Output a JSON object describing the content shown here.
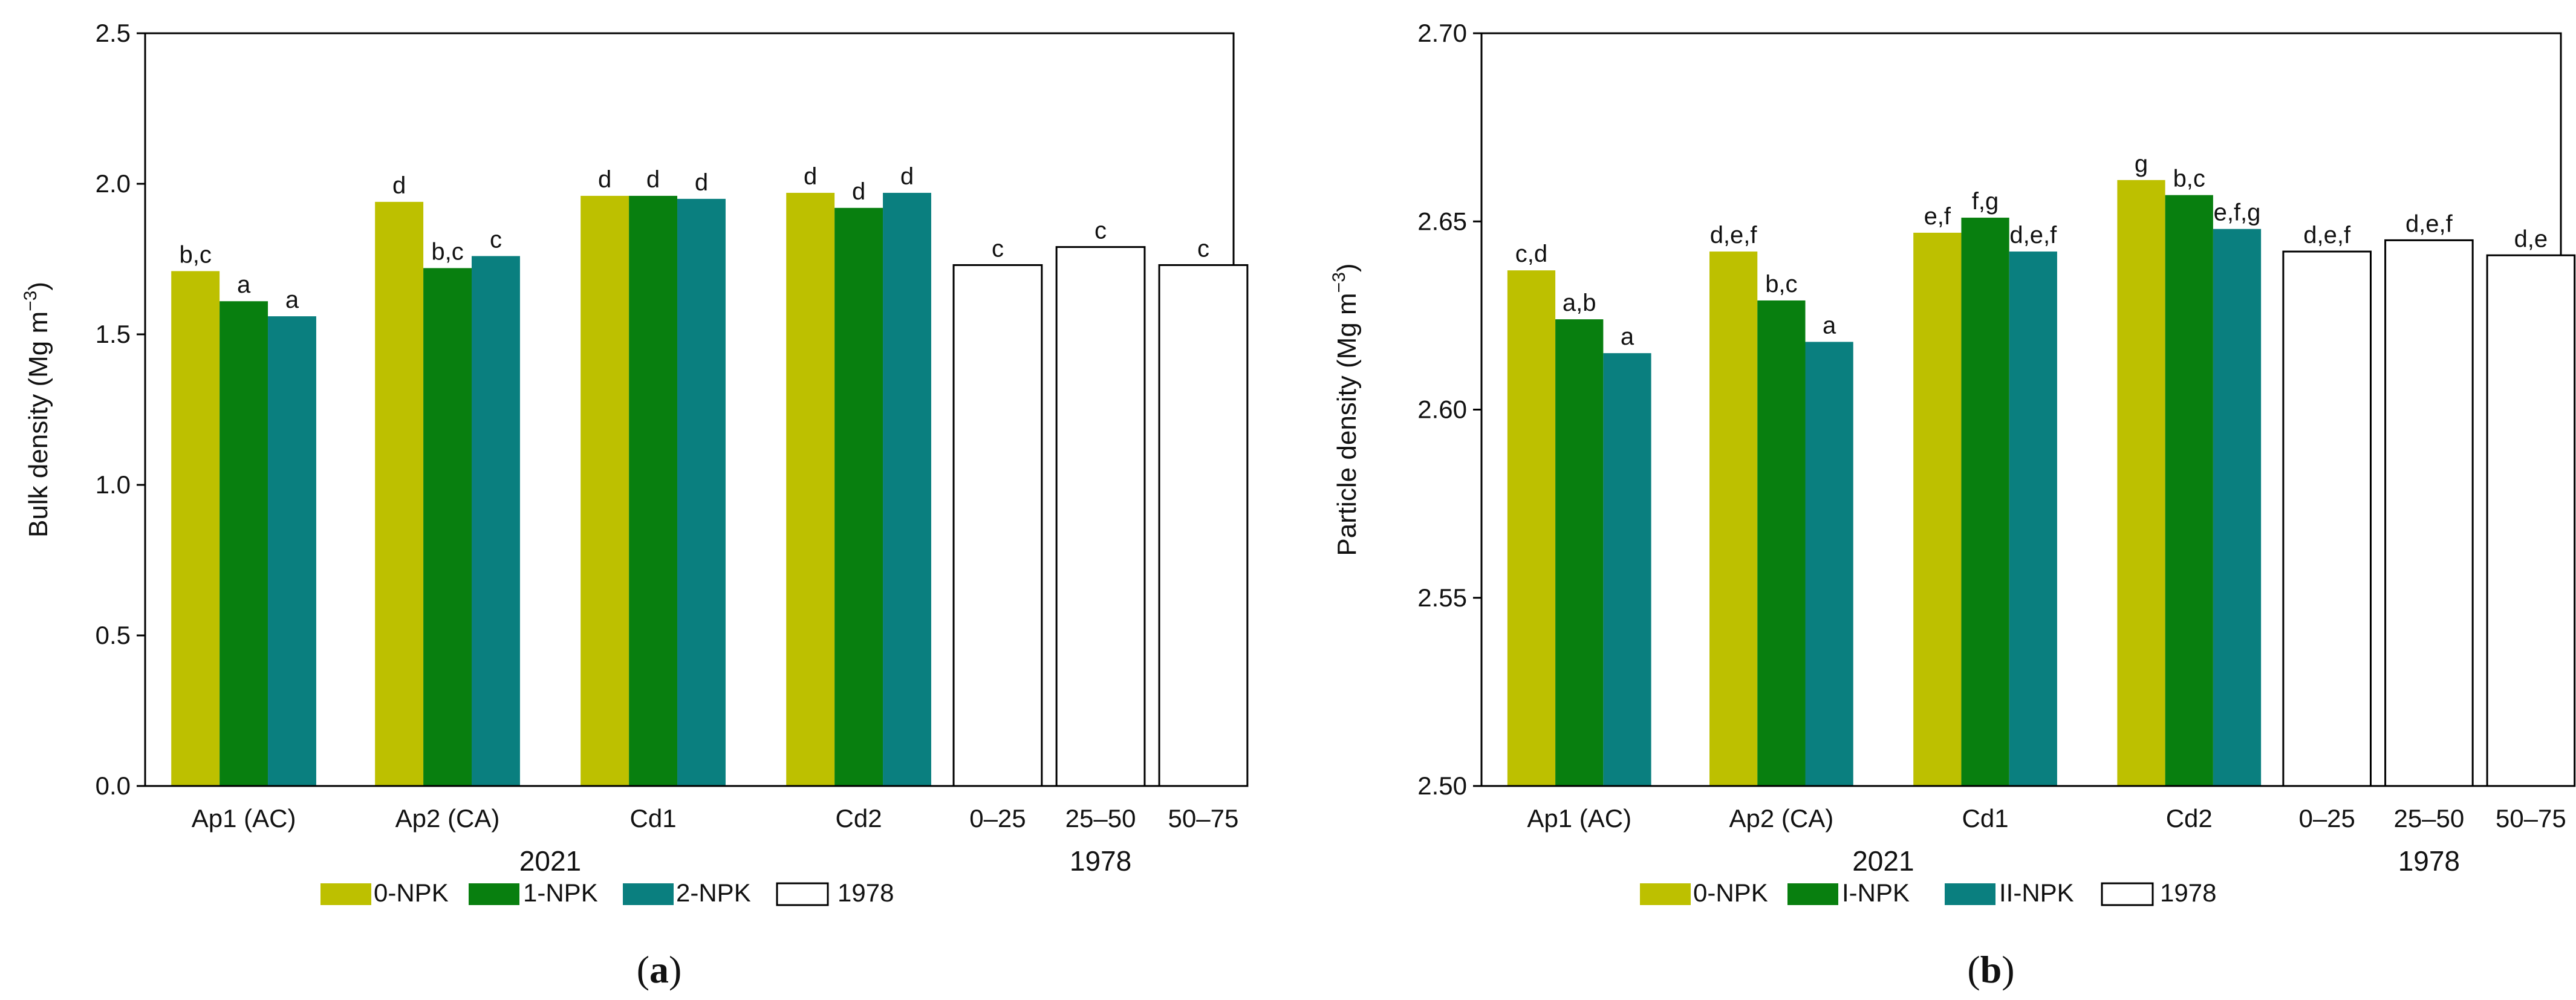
{
  "colors": {
    "npk0": "#bdc000",
    "npk1": "#087f0f",
    "npk2": "#0a7f7f",
    "y1978": "#ffffff",
    "axis": "#000000"
  },
  "chart_data": [
    {
      "panel_label": "a",
      "type": "bar",
      "ylabel": "Bulk density (Mg m",
      "ylabel_sup": "−3",
      "ylabel_close": ")",
      "ylim": [
        0,
        2.5
      ],
      "yticks": [
        "0.0",
        "0.5",
        "1.0",
        "1.5",
        "2.0",
        "2.5"
      ],
      "groups_2021": {
        "label": "2021",
        "categories": [
          "Ap1 (AC)",
          "Ap2 (CA)",
          "Cd1",
          "Cd2"
        ],
        "series": [
          {
            "name": "0-NPK",
            "values": [
              1.71,
              1.94,
              1.96,
              1.97
            ],
            "letters": [
              "b,c",
              "d",
              "d",
              "d"
            ]
          },
          {
            "name": "1-NPK",
            "values": [
              1.61,
              1.72,
              1.96,
              1.92
            ],
            "letters": [
              "a",
              "b,c",
              "d",
              "d"
            ]
          },
          {
            "name": "2-NPK",
            "values": [
              1.56,
              1.76,
              1.95,
              1.97
            ],
            "letters": [
              "a",
              "c",
              "d",
              "d"
            ]
          }
        ]
      },
      "groups_1978": {
        "label": "1978",
        "categories": [
          "0–25",
          "25–50",
          "50–75"
        ],
        "values": [
          1.73,
          1.79,
          1.73
        ],
        "letters": [
          "c",
          "c",
          "c"
        ]
      },
      "legend": [
        "0-NPK",
        "1-NPK",
        "2-NPK",
        "1978"
      ]
    },
    {
      "panel_label": "b",
      "type": "bar",
      "ylabel": "Particle density (Mg m",
      "ylabel_sup": "−3",
      "ylabel_close": ")",
      "ylim": [
        2.5,
        2.7
      ],
      "yticks": [
        "2.50",
        "2.55",
        "2.60",
        "2.65",
        "2.70"
      ],
      "groups_2021": {
        "label": "2021",
        "categories": [
          "Ap1 (AC)",
          "Ap2 (CA)",
          "Cd1",
          "Cd2"
        ],
        "series": [
          {
            "name": "0-NPK",
            "values": [
              2.637,
              2.642,
              2.647,
              2.661
            ],
            "letters": [
              "c,d",
              "d,e,f",
              "e,f",
              "g"
            ]
          },
          {
            "name": "I-NPK",
            "values": [
              2.624,
              2.629,
              2.651,
              2.657
            ],
            "letters": [
              "a,b",
              "b,c",
              "f,g",
              "b,c"
            ]
          },
          {
            "name": "II-NPK",
            "values": [
              2.615,
              2.618,
              2.642,
              2.648
            ],
            "letters": [
              "a",
              "a",
              "d,e,f",
              "e,f,g"
            ]
          }
        ]
      },
      "groups_1978": {
        "label": "1978",
        "categories": [
          "0–25",
          "25–50",
          "50–75"
        ],
        "values": [
          2.642,
          2.645,
          2.641
        ],
        "letters": [
          "d,e,f",
          "d,e,f",
          "d,e"
        ]
      },
      "legend": [
        "0-NPK",
        "I-NPK",
        "II-NPK",
        "1978"
      ]
    }
  ]
}
